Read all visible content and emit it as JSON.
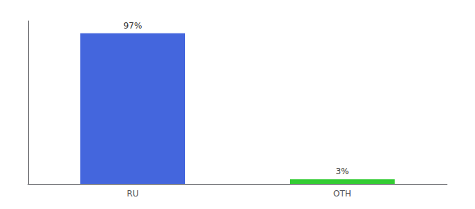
{
  "chart_data": {
    "type": "bar",
    "categories": [
      "RU",
      "OTH"
    ],
    "values": [
      97,
      3
    ],
    "value_labels": [
      "97%",
      "3%"
    ],
    "colors": [
      "#4466dd",
      "#33cc33"
    ],
    "ylim": [
      0,
      105
    ],
    "grid": false,
    "data_labels": true,
    "tick_labels": "x"
  }
}
